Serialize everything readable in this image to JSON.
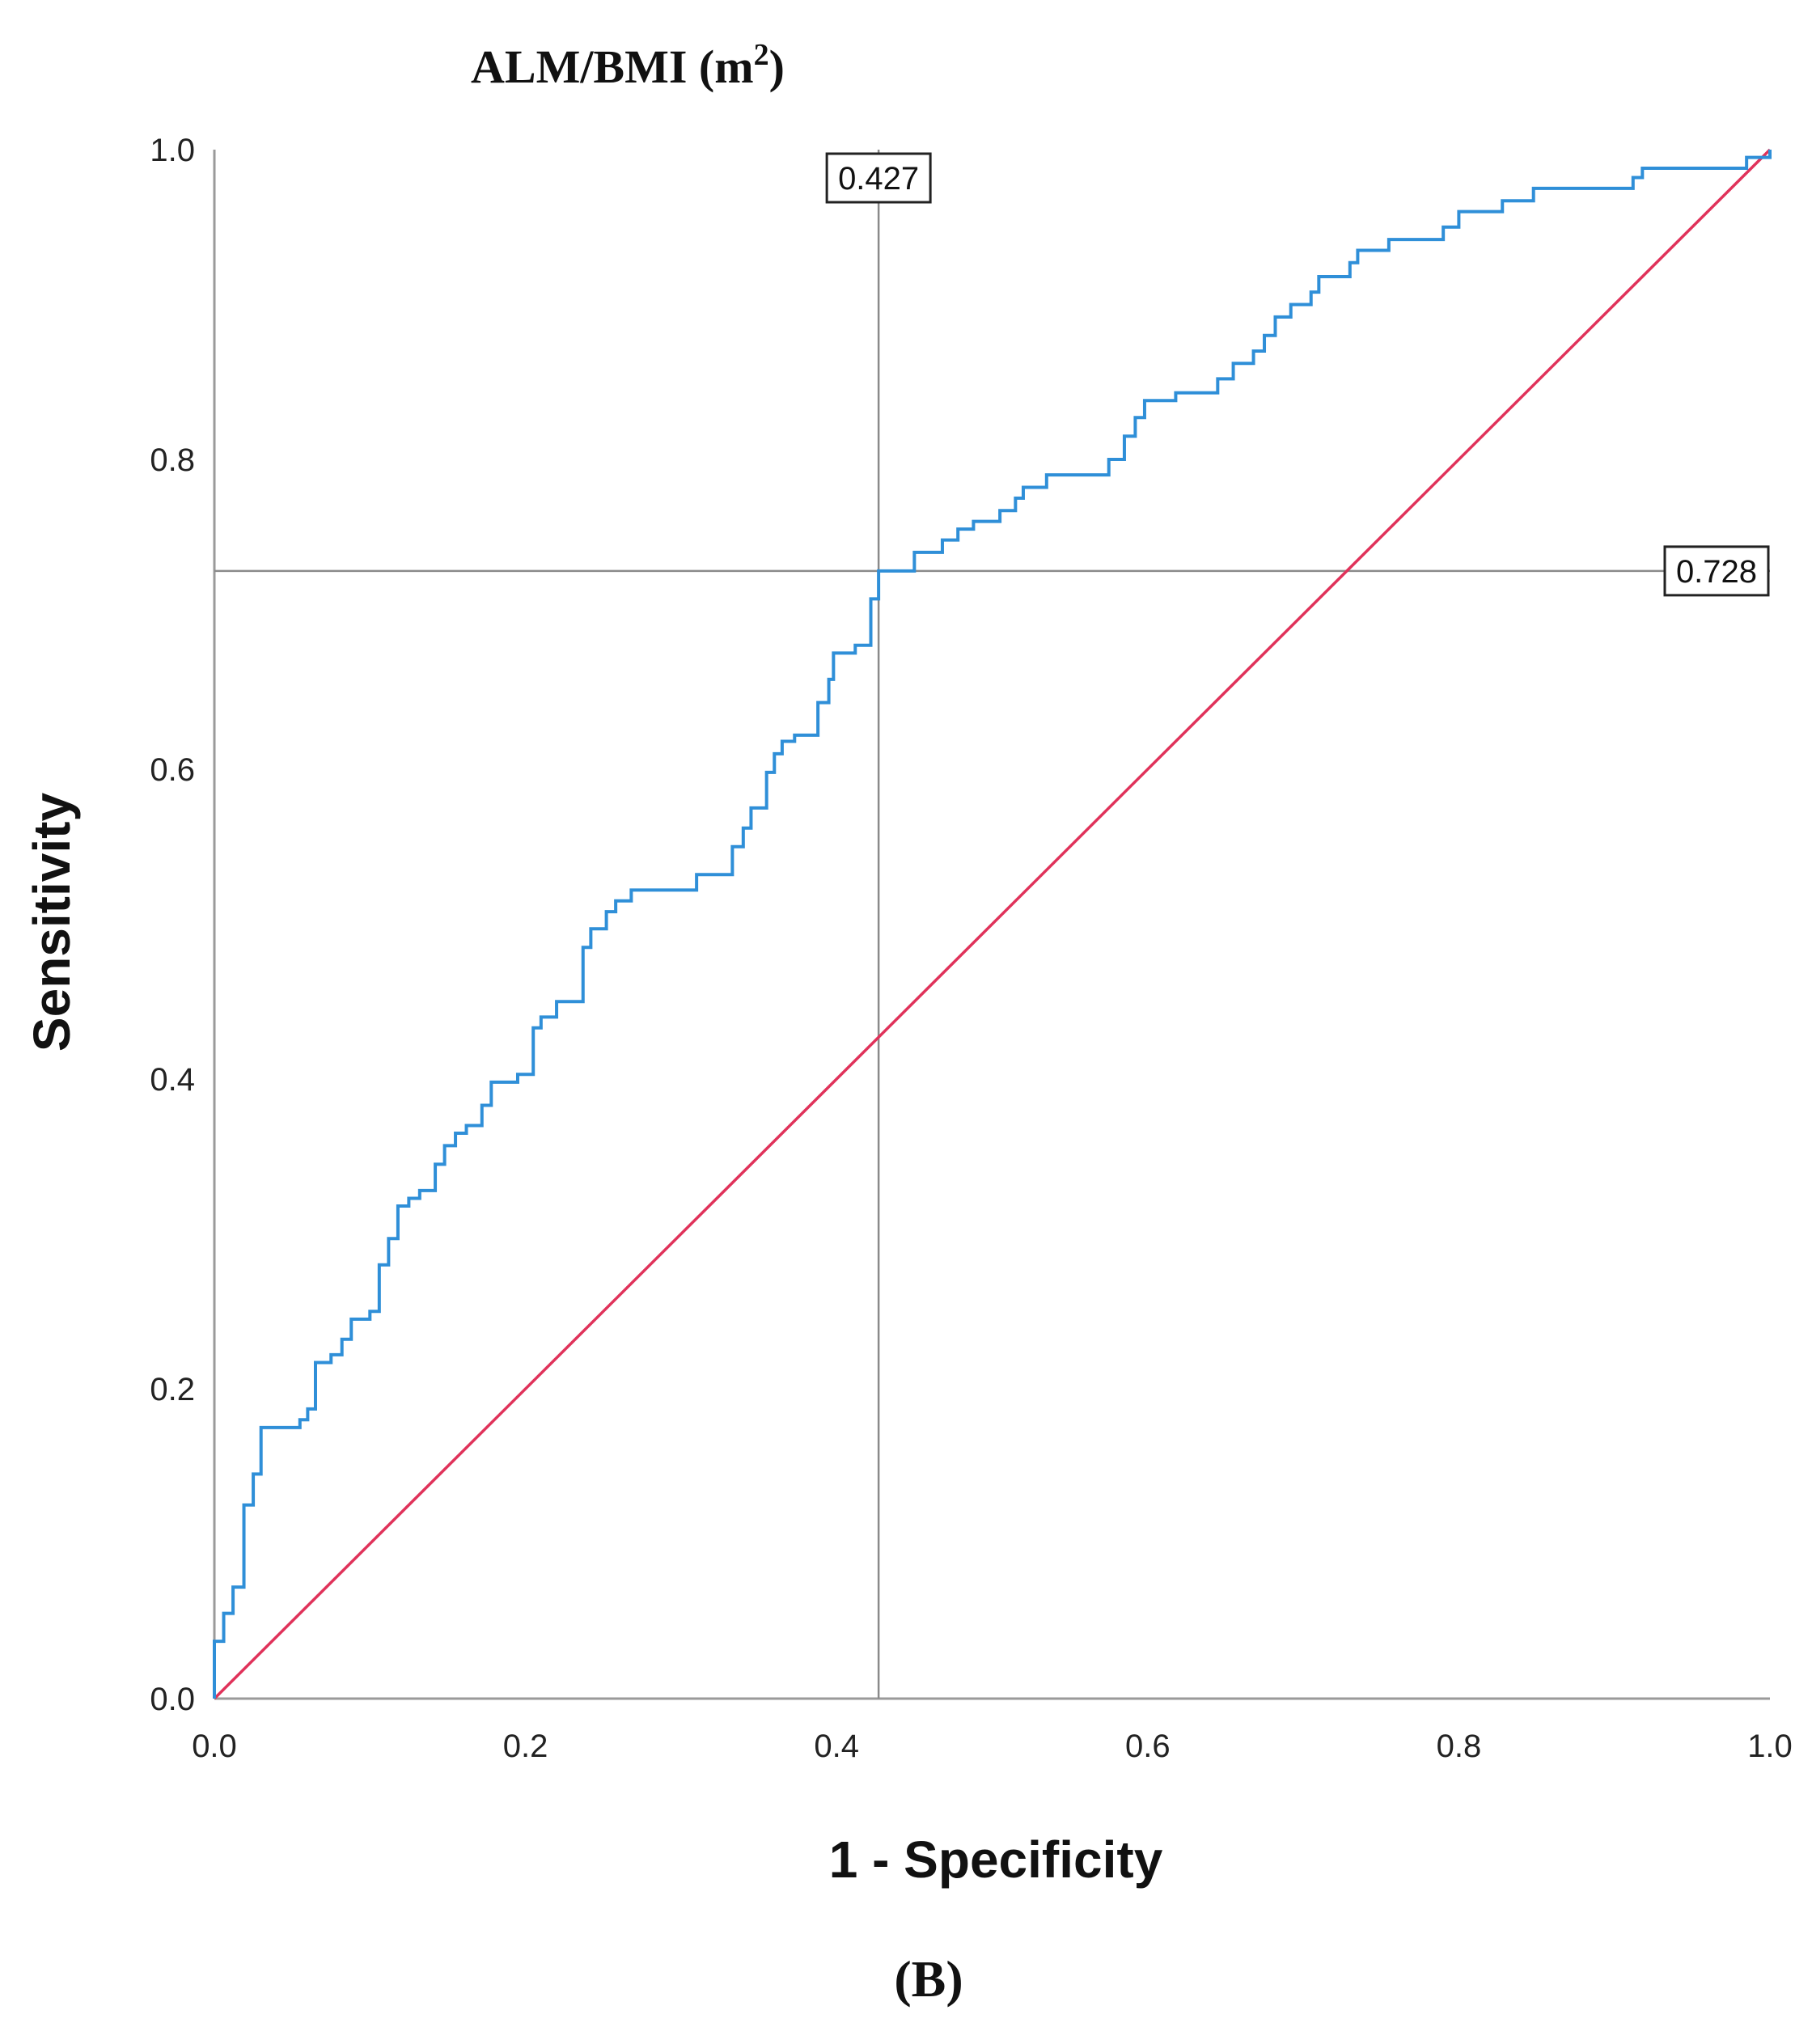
{
  "figure": {
    "title_main": "ALM/BMI (m",
    "title_sup": "2",
    "title_close": ")",
    "panel_label": "(B)"
  },
  "colors": {
    "roc_curve": "#2f8fd8",
    "diagonal": "#e0325a",
    "reference_lines": "#8a8a8a",
    "axis": "#9a9a9a"
  },
  "chart_data": {
    "type": "line",
    "title": "ALM/BMI (m2)",
    "xlabel": "1 - Specificity",
    "ylabel": "Sensitivity",
    "xlim": [
      0,
      1
    ],
    "ylim": [
      0,
      1
    ],
    "x_ticks": [
      "0.0",
      "0.2",
      "0.4",
      "0.6",
      "0.8",
      "1.0"
    ],
    "y_ticks": [
      "0.0",
      "0.2",
      "0.4",
      "0.6",
      "0.8",
      "1.0"
    ],
    "grid": false,
    "series": [
      {
        "style": "step",
        "points": [
          [
            0.0,
            0.0
          ],
          [
            0.0,
            0.037
          ],
          [
            0.006,
            0.037
          ],
          [
            0.006,
            0.055
          ],
          [
            0.012,
            0.055
          ],
          [
            0.012,
            0.072
          ],
          [
            0.019,
            0.072
          ],
          [
            0.019,
            0.125
          ],
          [
            0.025,
            0.125
          ],
          [
            0.025,
            0.145
          ],
          [
            0.03,
            0.145
          ],
          [
            0.03,
            0.175
          ],
          [
            0.055,
            0.175
          ],
          [
            0.055,
            0.18
          ],
          [
            0.06,
            0.18
          ],
          [
            0.06,
            0.187
          ],
          [
            0.065,
            0.187
          ],
          [
            0.065,
            0.217
          ],
          [
            0.075,
            0.217
          ],
          [
            0.075,
            0.222
          ],
          [
            0.082,
            0.222
          ],
          [
            0.082,
            0.232
          ],
          [
            0.088,
            0.232
          ],
          [
            0.088,
            0.245
          ],
          [
            0.1,
            0.245
          ],
          [
            0.1,
            0.25
          ],
          [
            0.106,
            0.25
          ],
          [
            0.106,
            0.28
          ],
          [
            0.112,
            0.28
          ],
          [
            0.112,
            0.297
          ],
          [
            0.118,
            0.297
          ],
          [
            0.118,
            0.318
          ],
          [
            0.125,
            0.318
          ],
          [
            0.125,
            0.323
          ],
          [
            0.132,
            0.323
          ],
          [
            0.132,
            0.328
          ],
          [
            0.142,
            0.328
          ],
          [
            0.142,
            0.345
          ],
          [
            0.148,
            0.345
          ],
          [
            0.148,
            0.357
          ],
          [
            0.155,
            0.357
          ],
          [
            0.155,
            0.365
          ],
          [
            0.162,
            0.365
          ],
          [
            0.162,
            0.37
          ],
          [
            0.172,
            0.37
          ],
          [
            0.172,
            0.383
          ],
          [
            0.178,
            0.383
          ],
          [
            0.178,
            0.398
          ],
          [
            0.195,
            0.398
          ],
          [
            0.195,
            0.403
          ],
          [
            0.205,
            0.403
          ],
          [
            0.205,
            0.433
          ],
          [
            0.21,
            0.433
          ],
          [
            0.21,
            0.44
          ],
          [
            0.22,
            0.44
          ],
          [
            0.22,
            0.45
          ],
          [
            0.237,
            0.45
          ],
          [
            0.237,
            0.485
          ],
          [
            0.242,
            0.485
          ],
          [
            0.242,
            0.497
          ],
          [
            0.252,
            0.497
          ],
          [
            0.252,
            0.508
          ],
          [
            0.258,
            0.508
          ],
          [
            0.258,
            0.515
          ],
          [
            0.268,
            0.515
          ],
          [
            0.268,
            0.522
          ],
          [
            0.31,
            0.522
          ],
          [
            0.31,
            0.532
          ],
          [
            0.333,
            0.532
          ],
          [
            0.333,
            0.55
          ],
          [
            0.34,
            0.55
          ],
          [
            0.34,
            0.562
          ],
          [
            0.345,
            0.562
          ],
          [
            0.345,
            0.575
          ],
          [
            0.355,
            0.575
          ],
          [
            0.355,
            0.598
          ],
          [
            0.36,
            0.598
          ],
          [
            0.36,
            0.61
          ],
          [
            0.365,
            0.61
          ],
          [
            0.365,
            0.618
          ],
          [
            0.373,
            0.618
          ],
          [
            0.373,
            0.622
          ],
          [
            0.388,
            0.622
          ],
          [
            0.388,
            0.643
          ],
          [
            0.395,
            0.643
          ],
          [
            0.395,
            0.658
          ],
          [
            0.398,
            0.658
          ],
          [
            0.398,
            0.675
          ],
          [
            0.412,
            0.675
          ],
          [
            0.412,
            0.68
          ],
          [
            0.422,
            0.68
          ],
          [
            0.422,
            0.71
          ],
          [
            0.427,
            0.71
          ],
          [
            0.427,
            0.728
          ],
          [
            0.45,
            0.728
          ],
          [
            0.45,
            0.74
          ],
          [
            0.468,
            0.74
          ],
          [
            0.468,
            0.748
          ],
          [
            0.478,
            0.748
          ],
          [
            0.478,
            0.755
          ],
          [
            0.488,
            0.755
          ],
          [
            0.488,
            0.76
          ],
          [
            0.505,
            0.76
          ],
          [
            0.505,
            0.767
          ],
          [
            0.515,
            0.767
          ],
          [
            0.515,
            0.775
          ],
          [
            0.52,
            0.775
          ],
          [
            0.52,
            0.782
          ],
          [
            0.535,
            0.782
          ],
          [
            0.535,
            0.79
          ],
          [
            0.575,
            0.79
          ],
          [
            0.575,
            0.8
          ],
          [
            0.585,
            0.8
          ],
          [
            0.585,
            0.815
          ],
          [
            0.592,
            0.815
          ],
          [
            0.592,
            0.827
          ],
          [
            0.598,
            0.827
          ],
          [
            0.598,
            0.838
          ],
          [
            0.618,
            0.838
          ],
          [
            0.618,
            0.843
          ],
          [
            0.645,
            0.843
          ],
          [
            0.645,
            0.852
          ],
          [
            0.655,
            0.852
          ],
          [
            0.655,
            0.862
          ],
          [
            0.668,
            0.862
          ],
          [
            0.668,
            0.87
          ],
          [
            0.675,
            0.87
          ],
          [
            0.675,
            0.88
          ],
          [
            0.682,
            0.88
          ],
          [
            0.682,
            0.892
          ],
          [
            0.692,
            0.892
          ],
          [
            0.692,
            0.9
          ],
          [
            0.705,
            0.9
          ],
          [
            0.705,
            0.908
          ],
          [
            0.71,
            0.908
          ],
          [
            0.71,
            0.918
          ],
          [
            0.73,
            0.918
          ],
          [
            0.73,
            0.927
          ],
          [
            0.735,
            0.927
          ],
          [
            0.735,
            0.935
          ],
          [
            0.755,
            0.935
          ],
          [
            0.755,
            0.942
          ],
          [
            0.79,
            0.942
          ],
          [
            0.79,
            0.95
          ],
          [
            0.8,
            0.95
          ],
          [
            0.8,
            0.96
          ],
          [
            0.828,
            0.96
          ],
          [
            0.828,
            0.967
          ],
          [
            0.848,
            0.967
          ],
          [
            0.848,
            0.975
          ],
          [
            0.912,
            0.975
          ],
          [
            0.912,
            0.982
          ],
          [
            0.918,
            0.982
          ],
          [
            0.918,
            0.988
          ],
          [
            0.985,
            0.988
          ],
          [
            0.985,
            0.995
          ],
          [
            1.0,
            0.995
          ],
          [
            1.0,
            1.0
          ]
        ]
      },
      {
        "style": "line",
        "points": [
          [
            0,
            0
          ],
          [
            1,
            1
          ]
        ]
      }
    ],
    "reference_lines": [
      {
        "orientation": "vertical",
        "value": 0.427,
        "label": "0.427"
      },
      {
        "orientation": "horizontal",
        "value": 0.728,
        "label": "0.728"
      }
    ]
  }
}
